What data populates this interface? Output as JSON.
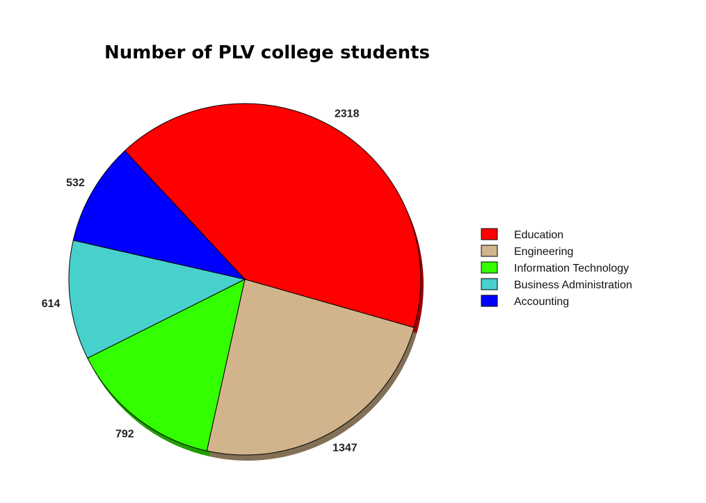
{
  "chart_data": {
    "type": "pie",
    "title": "Number of PLV college students",
    "categories": [
      "Education",
      "Engineering",
      "Information Technology",
      "Business Administration",
      "Accounting"
    ],
    "values": [
      2318,
      1347,
      792,
      614,
      532
    ],
    "colors": [
      "#ff0000",
      "#d2b48c",
      "#33ff00",
      "#48d1cc",
      "#0000ff"
    ],
    "legend_position": "right",
    "start_angle_deg": 227,
    "direction": "clockwise",
    "shadow": true
  }
}
